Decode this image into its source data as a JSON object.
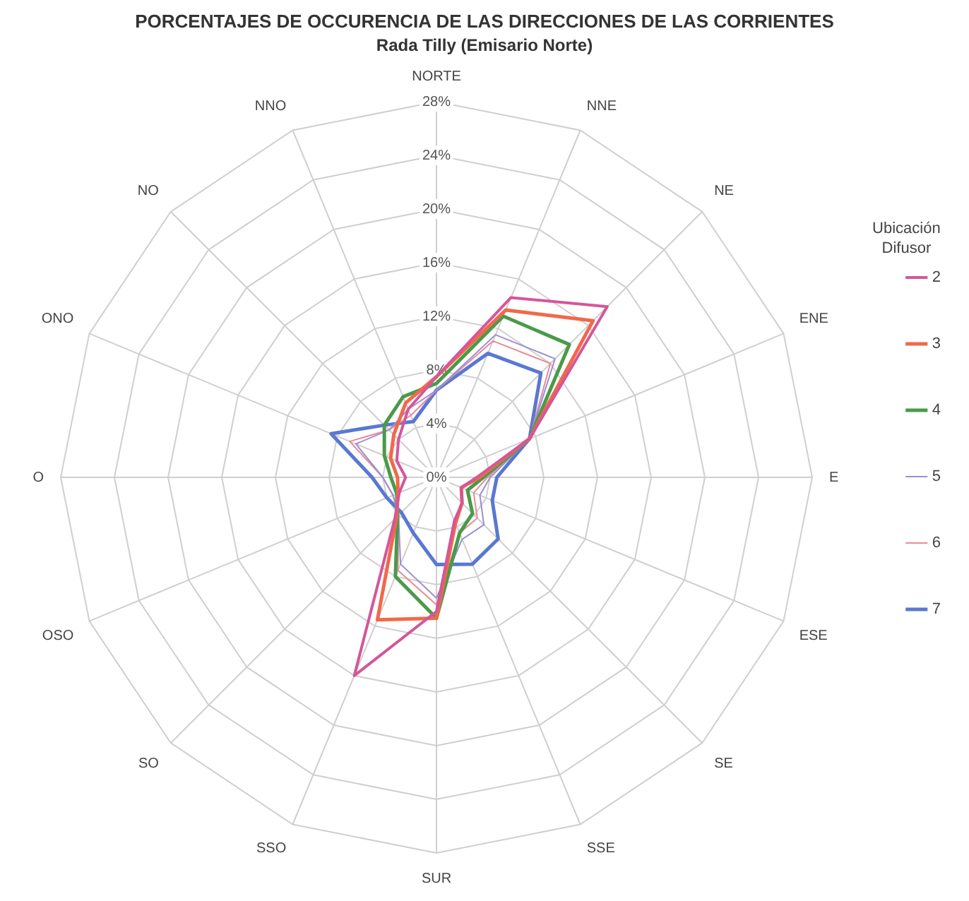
{
  "chart_data": {
    "type": "radar",
    "title": "PORCENTAJES DE OCCURENCIA DE LAS DIRECCIONES DE LAS CORRIENTES",
    "subtitle": "Rada Tilly (Emisario Norte)",
    "legend_title": "Ubicación Difusor",
    "legend": "right",
    "grid": true,
    "categories": [
      "NORTE",
      "NNE",
      "NE",
      "ENE",
      "E",
      "ESE",
      "SE",
      "SSE",
      "SUR",
      "SSO",
      "SO",
      "OSO",
      "O",
      "ONO",
      "NO",
      "NNO"
    ],
    "ylim": [
      0,
      28
    ],
    "yticks": [
      {
        "value": 0,
        "label": "0%"
      },
      {
        "value": 4,
        "label": "4%"
      },
      {
        "value": 8,
        "label": "8%"
      },
      {
        "value": 12,
        "label": "12%"
      },
      {
        "value": 16,
        "label": "16%"
      },
      {
        "value": 20,
        "label": "20%"
      },
      {
        "value": 24,
        "label": "24%"
      },
      {
        "value": 28,
        "label": "28%"
      }
    ],
    "series": [
      {
        "name": "2",
        "color": "#d4569a",
        "values": [
          7.5,
          14.5,
          18,
          7.5,
          3,
          2,
          2.7,
          3.5,
          10,
          16,
          4.4,
          3,
          2.3,
          3.2,
          4,
          5.5
        ]
      },
      {
        "name": "3",
        "color": "#f0694a",
        "values": [
          7.5,
          13.5,
          16.5,
          7.5,
          3.2,
          2,
          2.7,
          3.7,
          10.5,
          11.5,
          4.2,
          3.1,
          2.9,
          3.7,
          4.5,
          6
        ]
      },
      {
        "name": "4",
        "color": "#4a9a4a",
        "values": [
          7,
          13,
          14,
          7.5,
          3.5,
          2.5,
          3.8,
          4.5,
          10.5,
          8,
          4.1,
          3.2,
          3.4,
          4.2,
          5.5,
          6.5
        ]
      },
      {
        "name": "5",
        "color": "#9a8fd0",
        "values": [
          6.5,
          11.5,
          12.5,
          7.5,
          4,
          3.5,
          5,
          5,
          9,
          7,
          4,
          3.5,
          4,
          6.5,
          5,
          5.5
        ]
      },
      {
        "name": "6",
        "color": "#e88a9a",
        "values": [
          6.5,
          11,
          12,
          7.5,
          3.8,
          3,
          4.3,
          4.5,
          9.5,
          7.5,
          4,
          3.5,
          4,
          7,
          5,
          5
        ]
      },
      {
        "name": "7",
        "color": "#5a78d0",
        "values": [
          6.5,
          10,
          11,
          7.5,
          4.5,
          4.5,
          6.5,
          7,
          6.5,
          4.5,
          3.7,
          4,
          4.8,
          8.5,
          5.5,
          4.5
        ]
      }
    ]
  }
}
